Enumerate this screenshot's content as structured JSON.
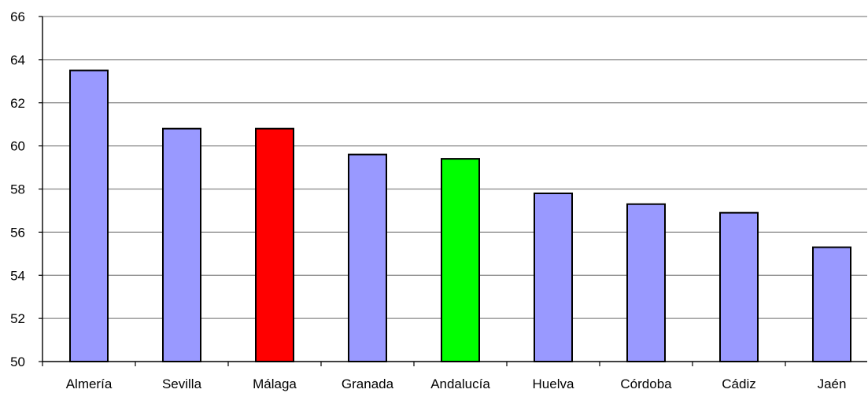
{
  "chart_data": {
    "type": "bar",
    "title": "",
    "xlabel": "",
    "ylabel": "",
    "categories": [
      "Almería",
      "Sevilla",
      "Málaga",
      "Granada",
      "Andalucía",
      "Huelva",
      "Córdoba",
      "Cádiz",
      "Jaén"
    ],
    "values": [
      63.5,
      60.8,
      60.8,
      59.6,
      59.4,
      57.8,
      57.3,
      56.9,
      55.3
    ],
    "colors": [
      "#9999FF",
      "#9999FF",
      "#FF0000",
      "#9999FF",
      "#00FF00",
      "#9999FF",
      "#9999FF",
      "#9999FF",
      "#9999FF"
    ],
    "ylim": [
      50,
      66
    ],
    "yticks": [
      50,
      52,
      54,
      56,
      58,
      60,
      62,
      64,
      66
    ],
    "grid": true,
    "legend": "none"
  }
}
